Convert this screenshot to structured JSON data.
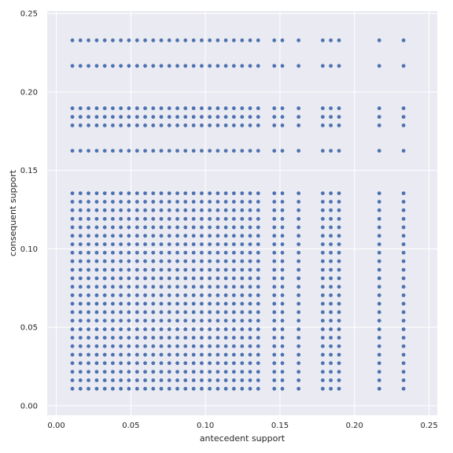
{
  "chart_data": {
    "type": "scatter",
    "title": "",
    "xlabel": "antecedent support",
    "ylabel": "consequent support",
    "xlim": [
      -0.0061,
      0.2555
    ],
    "ylim": [
      -0.0061,
      0.2516
    ],
    "xticks": [
      0.0,
      0.05,
      0.1,
      0.15,
      0.2,
      0.25
    ],
    "xtick_labels": [
      "0.00",
      "0.05",
      "0.10",
      "0.15",
      "0.20",
      "0.25"
    ],
    "yticks": [
      0.0,
      0.05,
      0.1,
      0.15,
      0.2,
      0.25
    ],
    "ytick_labels": [
      "0.00",
      "0.05",
      "0.10",
      "0.15",
      "0.20",
      "0.25"
    ],
    "grid": true,
    "colors": {
      "background": "#eaeaf2",
      "grid": "#ffffff",
      "point": "#4c72b0"
    },
    "x": [
      0.0108,
      0.0162,
      0.0216,
      0.0271,
      0.0325,
      0.0379,
      0.0433,
      0.0487,
      0.0542,
      0.0596,
      0.065,
      0.0704,
      0.0758,
      0.0812,
      0.0866,
      0.0921,
      0.0975,
      0.1029,
      0.1083,
      0.1137,
      0.1191,
      0.1246,
      0.13,
      0.1354,
      0.1462,
      0.1516,
      0.1625,
      0.1787,
      0.1841,
      0.1896,
      0.2166,
      0.2329
    ],
    "y_levels": [
      0.0108,
      0.0162,
      0.0216,
      0.0271,
      0.0325,
      0.0379,
      0.0433,
      0.0487,
      0.0542,
      0.0596,
      0.065,
      0.0704,
      0.0758,
      0.0812,
      0.0866,
      0.0921,
      0.0975,
      0.1029,
      0.1083,
      0.1137,
      0.1191,
      0.1246,
      0.13,
      0.1354,
      0.1462,
      0.1516,
      0.1625,
      0.1787,
      0.1841,
      0.1896,
      0.2166,
      0.2329
    ],
    "columns": [
      {
        "x": 0.0108,
        "y_missing": [
          0.1462,
          0.1516
        ]
      },
      {
        "x": 0.0162,
        "y_missing": [
          0.1462,
          0.1516
        ]
      },
      {
        "x": 0.0216,
        "y_missing": [
          0.1462,
          0.1516
        ]
      },
      {
        "x": 0.0271,
        "y_missing": [
          0.1462,
          0.1516
        ]
      },
      {
        "x": 0.0325,
        "y_missing": [
          0.1462,
          0.1516
        ]
      },
      {
        "x": 0.0379,
        "y_missing": [
          0.1462,
          0.1516
        ]
      },
      {
        "x": 0.0433,
        "y_missing": [
          0.1462,
          0.1516
        ]
      },
      {
        "x": 0.0487,
        "y_missing": [
          0.1462,
          0.1516
        ]
      },
      {
        "x": 0.0542,
        "y_missing": [
          0.1462,
          0.1516
        ]
      },
      {
        "x": 0.0596,
        "y_missing": [
          0.1462,
          0.1516
        ]
      },
      {
        "x": 0.065,
        "y_missing": [
          0.1462,
          0.1516
        ]
      },
      {
        "x": 0.0704,
        "y_missing": [
          0.1462,
          0.1516
        ]
      },
      {
        "x": 0.0758,
        "y_missing": [
          0.1462,
          0.1516
        ]
      },
      {
        "x": 0.0812,
        "y_missing": [
          0.1462,
          0.1516
        ]
      },
      {
        "x": 0.0866,
        "y_missing": [
          0.1462,
          0.1516
        ]
      },
      {
        "x": 0.0921,
        "y_missing": [
          0.1462,
          0.1516
        ]
      },
      {
        "x": 0.0975,
        "y_missing": [
          0.1462,
          0.1516
        ]
      },
      {
        "x": 0.1029,
        "y_missing": [
          0.1462,
          0.1516
        ]
      },
      {
        "x": 0.1083,
        "y_missing": [
          0.1462,
          0.1516
        ]
      },
      {
        "x": 0.1137,
        "y_missing": [
          0.1462,
          0.1516
        ]
      },
      {
        "x": 0.1191,
        "y_missing": [
          0.1462,
          0.1516
        ]
      },
      {
        "x": 0.1246,
        "y_missing": [
          0.1462,
          0.1516
        ]
      },
      {
        "x": 0.13,
        "y_missing": [
          0.1462,
          0.1516
        ]
      },
      {
        "x": 0.1354,
        "y_missing": [
          0.1462,
          0.1516
        ]
      },
      {
        "x": 0.1462,
        "y_missing": [
          0.1462,
          0.1516
        ]
      },
      {
        "x": 0.1516,
        "y_missing": [
          0.1462,
          0.1516
        ]
      },
      {
        "x": 0.1625,
        "y_missing": [
          0.1462,
          0.1516
        ]
      },
      {
        "x": 0.1787,
        "y_missing": [
          0.1462,
          0.1516
        ]
      },
      {
        "x": 0.1841,
        "y_missing": [
          0.1462,
          0.1516
        ]
      },
      {
        "x": 0.1896,
        "y_missing": [
          0.1462,
          0.1516
        ]
      },
      {
        "x": 0.2166,
        "y_missing": [
          0.1462,
          0.1516
        ]
      },
      {
        "x": 0.2329,
        "y_missing": [
          0.1462,
          0.1516
        ]
      }
    ]
  }
}
